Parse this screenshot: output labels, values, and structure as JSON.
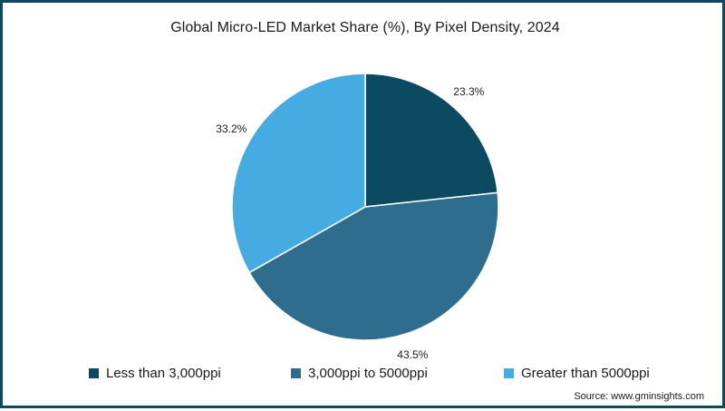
{
  "chart_data": {
    "type": "pie",
    "title": "Global Micro-LED Market Share (%), By Pixel Density, 2024",
    "categories": [
      "Less than 3,000ppi",
      "3,000ppi to 5000ppi",
      "Greater than 5000ppi"
    ],
    "values": [
      23.3,
      43.5,
      33.2
    ],
    "labels": [
      "23.3%",
      "43.5%",
      "33.2%"
    ],
    "colors": [
      "#0b4a60",
      "#2f6d8f",
      "#45abe0"
    ],
    "legend_placement": "bottom",
    "start_angle": "12 o'clock",
    "direction": "clockwise"
  },
  "source": "Source: www.gminsights.com"
}
